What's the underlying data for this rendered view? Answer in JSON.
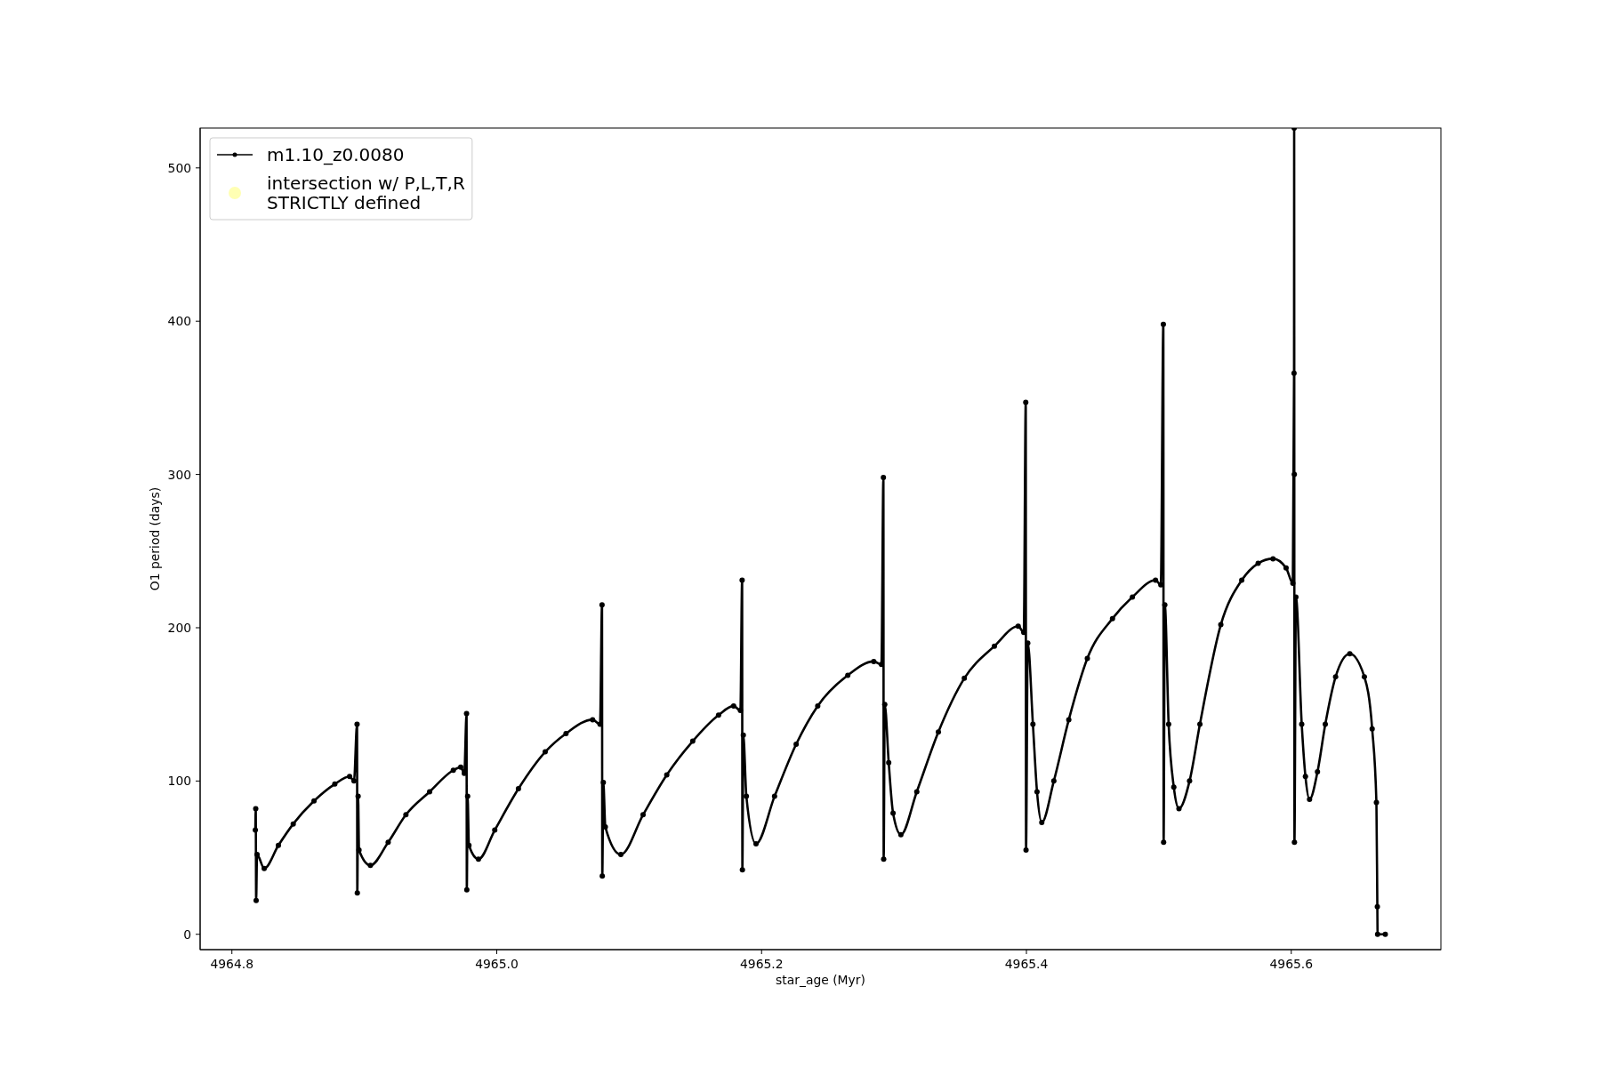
{
  "chart_data": {
    "type": "line",
    "xlabel": "star_age (Myr)",
    "ylabel": "O1 period (days)",
    "xlim": [
      4964.776,
      4965.713
    ],
    "ylim": [
      -10,
      526
    ],
    "xticks": [
      4964.8,
      {
        "value": 4965,
        "label": "4965.0"
      },
      4965.2,
      4965.4,
      4965.6
    ],
    "yticks": [
      0,
      100,
      200,
      300,
      400,
      500
    ],
    "legend": "top left",
    "marker": "circle",
    "series": [
      {
        "name": "m1.10_z0.0080",
        "color": "#000000",
        "x": [
          4964.8177,
          4964.818,
          4964.8183,
          4964.819,
          4964.8244,
          4964.8351,
          4964.8463,
          4964.862,
          4964.8777,
          4964.8889,
          4964.8922,
          4964.8945,
          4964.8947,
          4964.8953,
          4964.896,
          4964.9046,
          4964.918,
          4964.9314,
          4964.9493,
          4964.9672,
          4964.9728,
          4964.9755,
          4964.9772,
          4964.9774,
          4964.978,
          4964.979,
          4964.9862,
          4964.9985,
          4965.0164,
          4965.0366,
          4965.0523,
          4965.0724,
          4965.078,
          4965.0795,
          4965.0797,
          4965.0805,
          4965.082,
          4965.0937,
          4965.1105,
          4965.1284,
          4965.148,
          4965.1675,
          4965.1789,
          4965.184,
          4965.1853,
          4965.1855,
          4965.1862,
          4965.1885,
          4965.1958,
          4965.2098,
          4965.2261,
          4965.2424,
          4965.2651,
          4965.2847,
          4965.2905,
          4965.292,
          4965.2922,
          4965.293,
          4965.296,
          4965.2993,
          4965.3052,
          4965.3172,
          4965.3335,
          4965.3531,
          4965.3758,
          4965.3938,
          4965.398,
          4965.3995,
          4965.3997,
          4965.401,
          4965.4049,
          4965.408,
          4965.4116,
          4965.4207,
          4965.432,
          4965.446,
          4965.465,
          4965.48,
          4965.4975,
          4965.5015,
          4965.5034,
          4965.5036,
          4965.5045,
          4965.5074,
          4965.5113,
          4965.5152,
          4965.5232,
          4965.531,
          4965.5468,
          4965.5626,
          4965.575,
          4965.5862,
          4965.5961,
          4965.6012,
          4965.6021,
          4965.6022,
          4965.6023,
          4965.6024,
          4965.6035,
          4965.6079,
          4965.6107,
          4965.6138,
          4965.6198,
          4965.6257,
          4965.6335,
          4965.6442,
          4965.6552,
          4965.6611,
          4965.6643,
          4965.665,
          4965.6652,
          4965.671
        ],
        "values": [
          68,
          82,
          22,
          52,
          43,
          58,
          72,
          87,
          98,
          103,
          100,
          137,
          27,
          90,
          55,
          45,
          60,
          78,
          93,
          107,
          109,
          105,
          144,
          29,
          90,
          58,
          49,
          68,
          95,
          119,
          131,
          140,
          137,
          215,
          38,
          99,
          70,
          52,
          78,
          104,
          126,
          143,
          149,
          146,
          231,
          42,
          130,
          90,
          59,
          90,
          124,
          149,
          169,
          178,
          176,
          298,
          49,
          150,
          112,
          79,
          65,
          93,
          132,
          167,
          188,
          201,
          197,
          347,
          55,
          190,
          137,
          93,
          73,
          100,
          140,
          180,
          206,
          220,
          231,
          228,
          398,
          60,
          215,
          137,
          96,
          82,
          100,
          137,
          202,
          231,
          242,
          245,
          239,
          229,
          366,
          526,
          300,
          60,
          220,
          137,
          103,
          88,
          106,
          137,
          168,
          183,
          168,
          134,
          86,
          18,
          0,
          0
        ]
      },
      {
        "name": "intersection w/ P,L,T,R\nSTRICTLY defined",
        "type": "scatter",
        "color": "#ffffb3"
      }
    ]
  }
}
